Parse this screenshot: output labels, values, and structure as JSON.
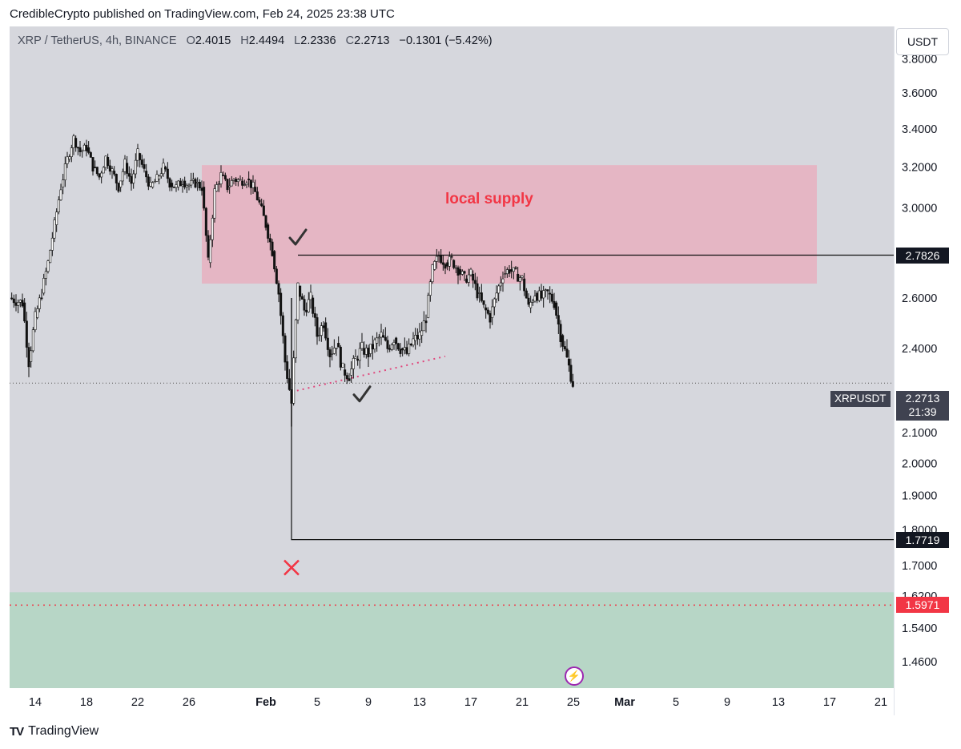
{
  "publisher_line": "CredibleCrypto published on TradingView.com, Feb 24, 2025 23:38 UTC",
  "header": {
    "symbol": "XRP / TetherUS, 4h, BINANCE",
    "open_key": "O",
    "open": "2.4015",
    "high_key": "H",
    "high": "2.4494",
    "low_key": "L",
    "low": "2.2336",
    "close_key": "C",
    "close": "2.2713",
    "change": "−0.1301 (−5.42%)"
  },
  "currency_button": "USDT",
  "brand": "TradingView",
  "colors": {
    "background": "#d6d7dd",
    "supply_zone": "#e8b0bf",
    "demand_zone": "#b7d6c6",
    "candle": "#111111",
    "accent_red": "#f23645",
    "tag_dark": "#3f4250"
  },
  "chart_data": {
    "type": "candlestick",
    "title": "",
    "ylim": [
      1.4,
      4.0
    ],
    "y_scale": "log",
    "y_ticks": [
      "3.8000",
      "3.6000",
      "3.4000",
      "3.2000",
      "3.0000",
      "2.6000",
      "2.4000",
      "2.1000",
      "2.0000",
      "1.9000",
      "1.8000",
      "1.7000",
      "1.6200",
      "1.5400",
      "1.4600"
    ],
    "x_ticks": [
      "14",
      "18",
      "22",
      "26",
      "Feb",
      "5",
      "9",
      "13",
      "17",
      "21",
      "25",
      "Mar",
      "5",
      "9",
      "13",
      "17",
      "21"
    ],
    "x_tick_dates": [
      "2025-01-14",
      "2025-01-18",
      "2025-01-22",
      "2025-01-26",
      "2025-02-01",
      "2025-02-05",
      "2025-02-09",
      "2025-02-13",
      "2025-02-17",
      "2025-02-21",
      "2025-02-25",
      "2025-03-01",
      "2025-03-05",
      "2025-03-09",
      "2025-03-13",
      "2025-03-17",
      "2025-03-21"
    ],
    "xlim": [
      "2025-01-12",
      "2025-03-22"
    ],
    "close_path": [
      [
        "2025-01-12",
        2.6
      ],
      [
        "2025-01-13",
        2.58
      ],
      [
        "2025-01-13T12",
        2.35
      ],
      [
        "2025-01-14",
        2.52
      ],
      [
        "2025-01-14T12",
        2.62
      ],
      [
        "2025-01-15",
        2.75
      ],
      [
        "2025-01-15T12",
        2.92
      ],
      [
        "2025-01-16",
        3.1
      ],
      [
        "2025-01-16T12",
        3.24
      ],
      [
        "2025-01-17",
        3.35
      ],
      [
        "2025-01-17T12",
        3.28
      ],
      [
        "2025-01-18",
        3.3
      ],
      [
        "2025-01-18T12",
        3.2
      ],
      [
        "2025-01-19",
        3.15
      ],
      [
        "2025-01-19T12",
        3.25
      ],
      [
        "2025-01-20",
        3.18
      ],
      [
        "2025-01-20T12",
        3.1
      ],
      [
        "2025-01-21",
        3.22
      ],
      [
        "2025-01-21T12",
        3.12
      ],
      [
        "2025-01-22",
        3.27
      ],
      [
        "2025-01-22T12",
        3.18
      ],
      [
        "2025-01-23",
        3.1
      ],
      [
        "2025-01-23T12",
        3.14
      ],
      [
        "2025-01-24",
        3.2
      ],
      [
        "2025-01-24T12",
        3.12
      ],
      [
        "2025-01-25",
        3.1
      ],
      [
        "2025-01-25T12",
        3.13
      ],
      [
        "2025-01-26",
        3.11
      ],
      [
        "2025-01-26T12",
        3.12
      ],
      [
        "2025-01-27",
        3.1
      ],
      [
        "2025-01-27T12",
        2.75
      ],
      [
        "2025-01-28",
        3.08
      ],
      [
        "2025-01-28T12",
        3.16
      ],
      [
        "2025-01-29",
        3.1
      ],
      [
        "2025-01-29T12",
        3.14
      ],
      [
        "2025-01-30",
        3.13
      ],
      [
        "2025-01-30T12",
        3.14
      ],
      [
        "2025-01-31",
        3.1
      ],
      [
        "2025-01-31T12",
        3.02
      ],
      [
        "2025-02-01",
        2.92
      ],
      [
        "2025-02-01T12",
        2.8
      ],
      [
        "2025-02-02",
        2.62
      ],
      [
        "2025-02-02T12",
        2.35
      ],
      [
        "2025-02-03",
        2.2
      ],
      [
        "2025-02-03T12",
        2.65
      ],
      [
        "2025-02-04",
        2.55
      ],
      [
        "2025-02-04T12",
        2.6
      ],
      [
        "2025-02-05",
        2.45
      ],
      [
        "2025-02-05T12",
        2.5
      ],
      [
        "2025-02-06",
        2.38
      ],
      [
        "2025-02-06T12",
        2.42
      ],
      [
        "2025-02-07",
        2.32
      ],
      [
        "2025-02-07T12",
        2.3
      ],
      [
        "2025-02-08",
        2.36
      ],
      [
        "2025-02-08T12",
        2.4
      ],
      [
        "2025-02-09",
        2.38
      ],
      [
        "2025-02-09T12",
        2.42
      ],
      [
        "2025-02-10",
        2.45
      ],
      [
        "2025-02-10T12",
        2.4
      ],
      [
        "2025-02-11",
        2.44
      ],
      [
        "2025-02-11T12",
        2.4
      ],
      [
        "2025-02-12",
        2.38
      ],
      [
        "2025-02-12T12",
        2.43
      ],
      [
        "2025-02-13",
        2.45
      ],
      [
        "2025-02-13T12",
        2.52
      ],
      [
        "2025-02-14",
        2.72
      ],
      [
        "2025-02-14T12",
        2.78
      ],
      [
        "2025-02-15",
        2.75
      ],
      [
        "2025-02-15T12",
        2.76
      ],
      [
        "2025-02-16",
        2.72
      ],
      [
        "2025-02-16T12",
        2.68
      ],
      [
        "2025-02-17",
        2.7
      ],
      [
        "2025-02-17T12",
        2.62
      ],
      [
        "2025-02-18",
        2.56
      ],
      [
        "2025-02-18T12",
        2.52
      ],
      [
        "2025-02-19",
        2.62
      ],
      [
        "2025-02-19T12",
        2.7
      ],
      [
        "2025-02-20",
        2.72
      ],
      [
        "2025-02-20T12",
        2.7
      ],
      [
        "2025-02-21",
        2.68
      ],
      [
        "2025-02-21T12",
        2.56
      ],
      [
        "2025-02-22",
        2.62
      ],
      [
        "2025-02-22T12",
        2.6
      ],
      [
        "2025-02-23",
        2.62
      ],
      [
        "2025-02-23T12",
        2.58
      ],
      [
        "2025-02-24",
        2.45
      ],
      [
        "2025-02-24T12",
        2.36
      ],
      [
        "2025-02-24T23",
        2.2713
      ]
    ],
    "annotations": {
      "supply_zone": {
        "label": "local supply",
        "from": "2025-01-27",
        "to": "2025-03-16",
        "low": 2.66,
        "high": 3.21
      },
      "demand_zone": {
        "from": "2025-01-12",
        "to": "2025-03-22",
        "low": 1.4,
        "high": 1.63
      },
      "range_box": {
        "from": "2025-02-03",
        "to": "2025-03-22",
        "top": 2.7826,
        "bottom": 1.7719
      },
      "trendline": {
        "from": [
          "2025-02-03",
          2.24
        ],
        "to": [
          "2025-02-15",
          2.37
        ]
      },
      "checkmarks": [
        [
          "2025-02-03T12",
          2.86
        ],
        [
          "2025-02-08T12",
          2.23
        ]
      ],
      "x_mark": [
        "2025-02-03",
        1.695
      ],
      "dotted_level": 1.5971,
      "current_price": 2.2713
    },
    "price_tags": [
      {
        "value": "2.7826",
        "price": 2.7826,
        "style": "black"
      },
      {
        "value": "1.7719",
        "price": 1.7719,
        "style": "black"
      },
      {
        "value": "1.5971",
        "price": 1.5971,
        "style": "red"
      }
    ],
    "live_label": {
      "symbol": "XRPUSDT",
      "price": "2.2713",
      "countdown": "21:39"
    }
  }
}
